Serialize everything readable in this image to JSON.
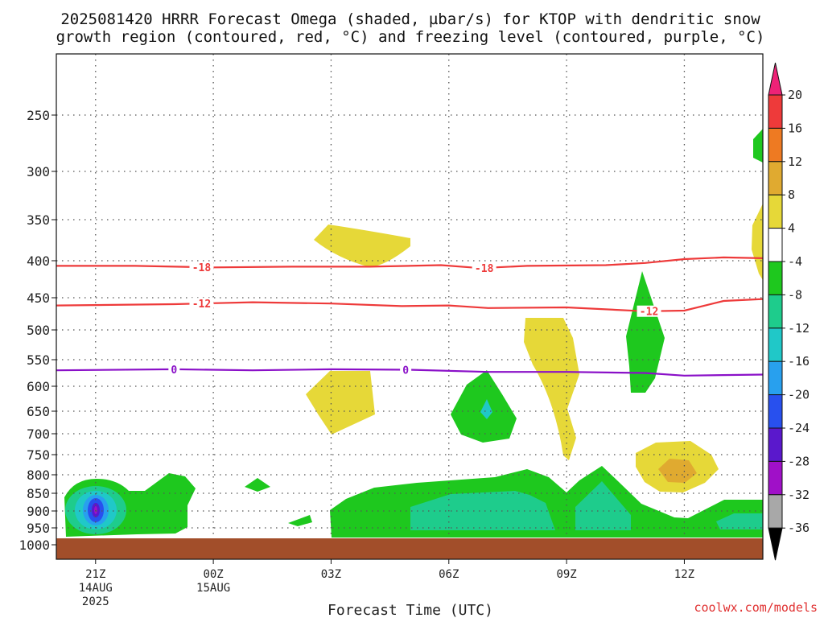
{
  "chart_data": {
    "type": "heatmap",
    "title_line1": "2025081420 HRRR Forecast Omega (shaded, µbar/s) for KTOP with dendritic snow",
    "title_line2": "growth region (contoured, red, °C) and freezing level (contoured, purple, °C)",
    "xlabel": "Forecast Time (UTC)",
    "ylabel": "",
    "credit": "coolwx.com/models",
    "x_ticks": [
      {
        "label": "21Z",
        "sub1": "14AUG",
        "sub2": "2025",
        "hour": 0
      },
      {
        "label": "00Z",
        "sub1": "15AUG",
        "sub2": "",
        "hour": 3
      },
      {
        "label": "03Z",
        "sub1": "",
        "sub2": "",
        "hour": 6
      },
      {
        "label": "06Z",
        "sub1": "",
        "sub2": "",
        "hour": 9
      },
      {
        "label": "09Z",
        "sub1": "",
        "sub2": "",
        "hour": 12
      },
      {
        "label": "12Z",
        "sub1": "",
        "sub2": "",
        "hour": 15
      }
    ],
    "xlim": [
      -1,
      17
    ],
    "y_ticks": [
      250,
      300,
      350,
      400,
      450,
      500,
      550,
      600,
      650,
      700,
      750,
      800,
      850,
      900,
      950,
      1000
    ],
    "ylim_hpa": [
      200,
      1025
    ],
    "ground_level_hpa": 975,
    "grid": true,
    "colorbar": {
      "labels": [
        "20",
        "16",
        "12",
        "8",
        "4",
        "-4",
        "-8",
        "-12",
        "-16",
        "-20",
        "-24",
        "-28",
        "-32",
        "-36"
      ],
      "colors": [
        "#ee2277",
        "#ee3a3a",
        "#ee7a22",
        "#e0aa30",
        "#e6d838",
        "#ffffff",
        "#1ec81e",
        "#1ecc8c",
        "#20c8c8",
        "#28a0ee",
        "#2850ee",
        "#5a18cc",
        "#a010c8",
        "#a8a8a8",
        "#000000"
      ]
    },
    "contours": [
      {
        "name": "dendritic snow growth region",
        "label": "-18",
        "color": "#ee3a3a",
        "points": [
          [
            -1,
            407
          ],
          [
            1,
            407
          ],
          [
            3,
            409
          ],
          [
            5,
            408
          ],
          [
            7,
            408
          ],
          [
            8.8,
            406
          ],
          [
            9.8,
            410
          ],
          [
            11,
            407
          ],
          [
            13,
            406
          ],
          [
            14,
            403
          ],
          [
            15,
            398
          ],
          [
            16,
            396
          ],
          [
            17,
            397
          ]
        ],
        "label_hours": [
          2.7,
          9.9
        ]
      },
      {
        "name": "dendritic snow growth region",
        "label": "-12",
        "color": "#ee3a3a",
        "points": [
          [
            -1,
            462
          ],
          [
            2,
            460
          ],
          [
            4,
            457
          ],
          [
            6,
            459
          ],
          [
            7.8,
            463
          ],
          [
            9,
            462
          ],
          [
            10,
            466
          ],
          [
            12,
            465
          ],
          [
            14,
            471
          ],
          [
            15,
            470
          ],
          [
            16,
            455
          ],
          [
            17,
            452
          ]
        ],
        "label_hours": [
          2.7,
          14.1
        ]
      },
      {
        "name": "freezing level",
        "label": "0",
        "color": "#8a10c8",
        "points": [
          [
            -1,
            570
          ],
          [
            2,
            568
          ],
          [
            4,
            570
          ],
          [
            6,
            568
          ],
          [
            8,
            569
          ],
          [
            10,
            573
          ],
          [
            12,
            573
          ],
          [
            14,
            575
          ],
          [
            15,
            580
          ],
          [
            17,
            578
          ]
        ],
        "label_hours": [
          2,
          7.9
        ]
      }
    ],
    "shaded_regions": [
      {
        "value_range": "4 to 8",
        "note": "positive omega near 03Z-04Z at ~370 hPa"
      },
      {
        "value_range": "4 to 8",
        "note": "positive omega near 03Z at ~600-700 hPa"
      },
      {
        "value_range": "4 to 8",
        "note": "positive omega 08Z-09Z at ~480-760 hPa"
      },
      {
        "value_range": "4 to 12",
        "note": "positive omega near 12Z at ~750-830 hPa"
      },
      {
        "value_range": "-4 to -36",
        "note": "strong negative omega near 21Z at ~900 hPa (min near -36)"
      },
      {
        "value_range": "-4 to -16",
        "note": "negative omega band 03Z-14Z at ~800-960 hPa"
      },
      {
        "value_range": "-4 to -16",
        "note": "negative omega near 07Z at ~580-700 hPa"
      },
      {
        "value_range": "-4 to -8",
        "note": "negative omega near 11Z at ~430-600 hPa"
      }
    ]
  }
}
